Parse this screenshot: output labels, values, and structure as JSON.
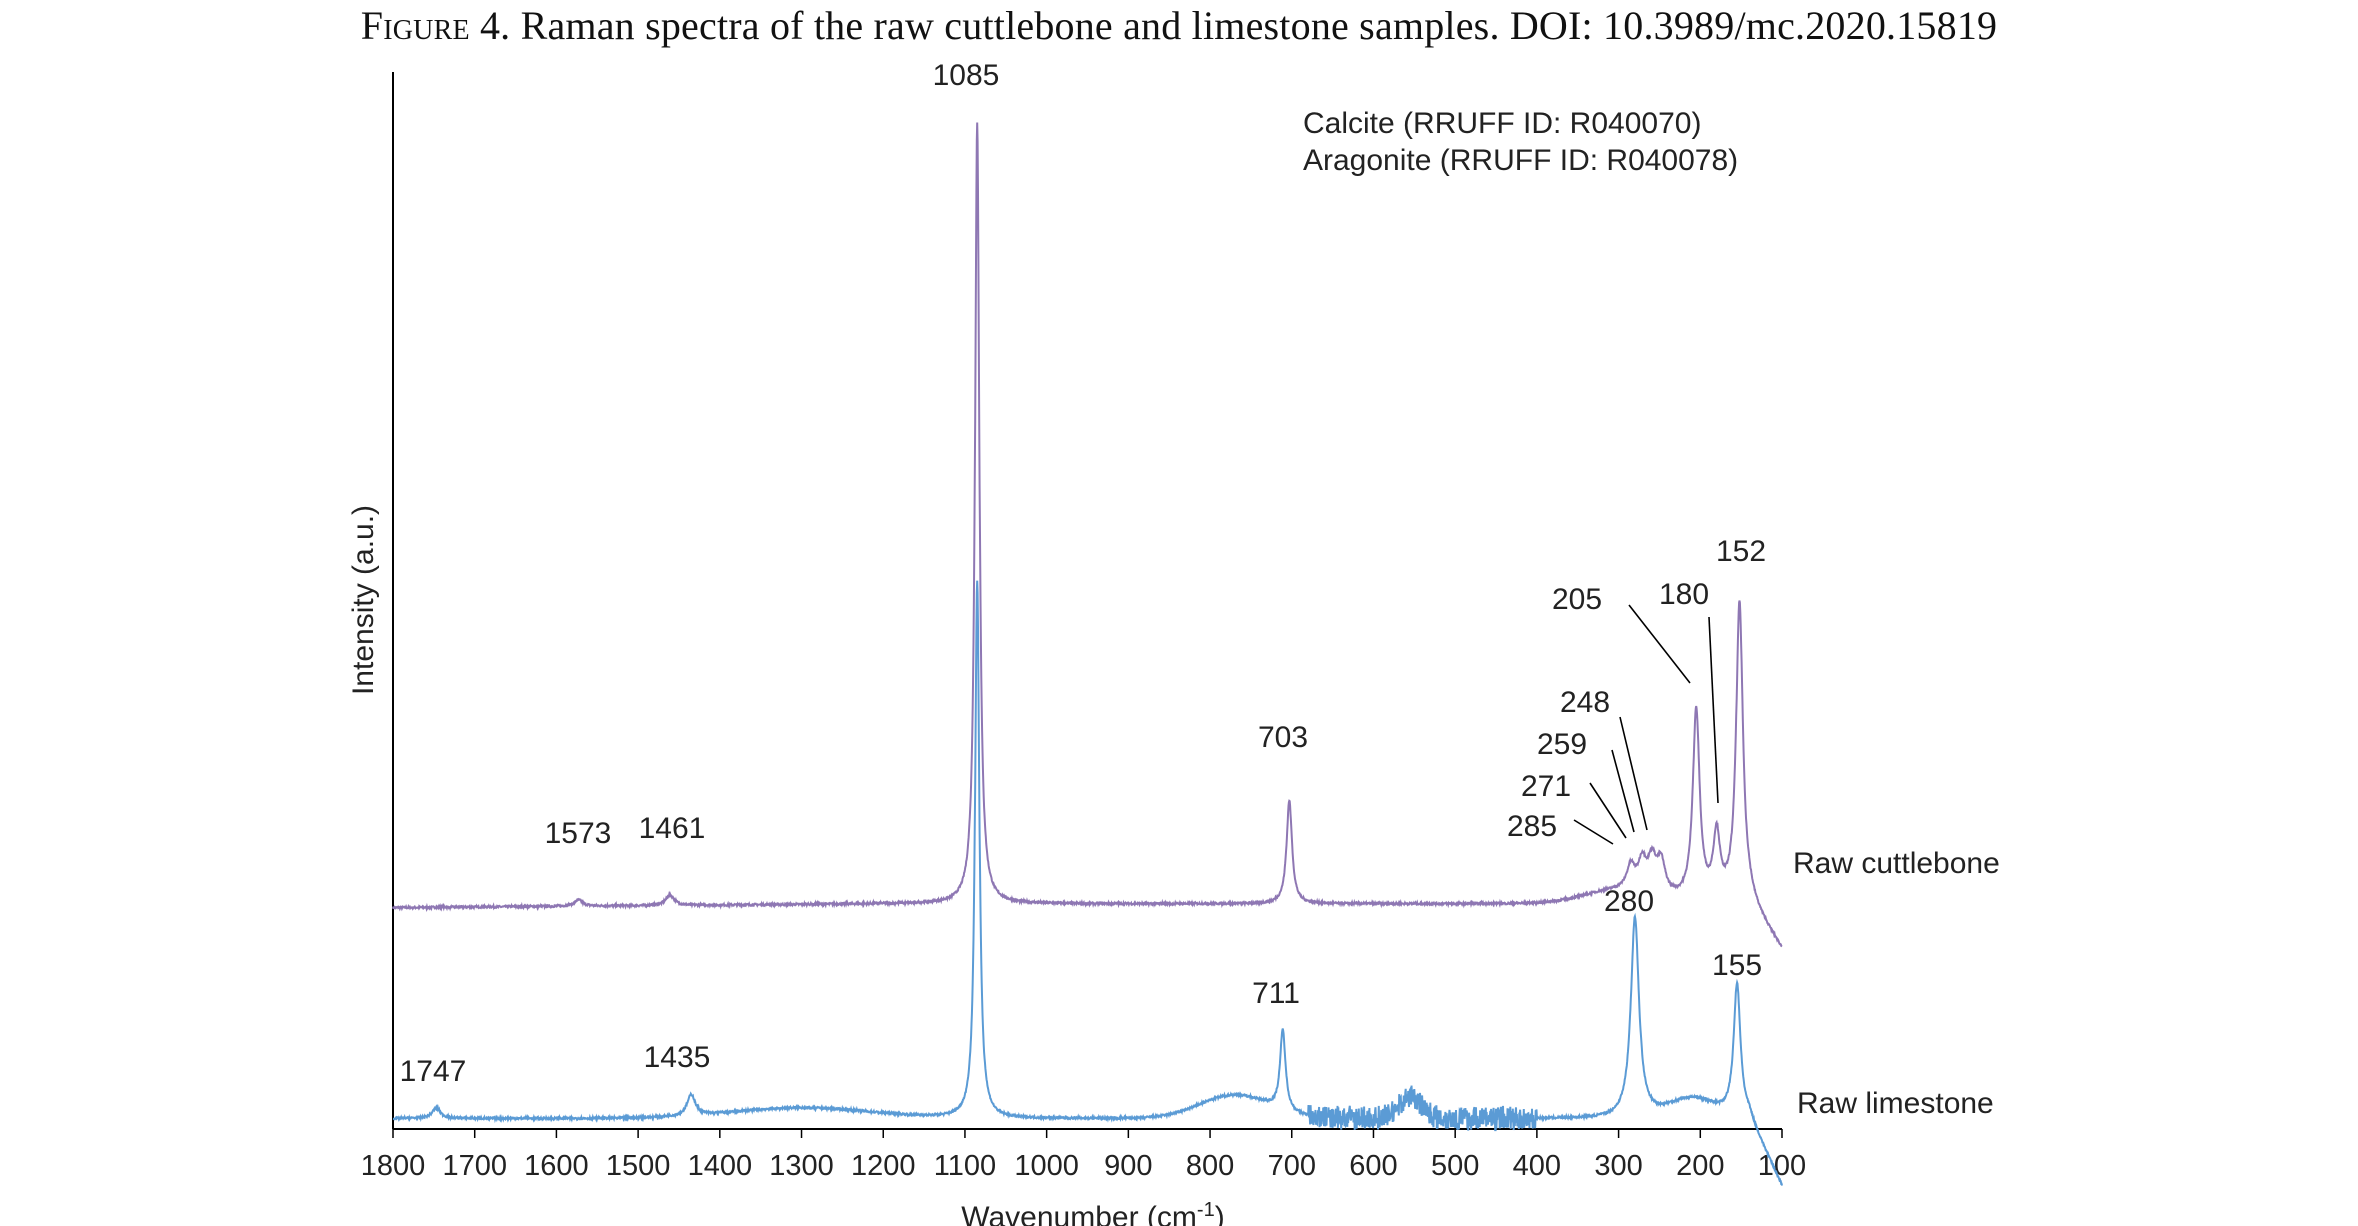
{
  "caption": {
    "figure_label": "Figure",
    "figure_number": "4.",
    "text": "Raman spectra of the raw cuttlebone and limestone samples. DOI: 10.3989/mc.2020.15819"
  },
  "chart_data": {
    "type": "line",
    "xlabel": "Wavenumber",
    "xlabel_unit": "(cm-1)",
    "ylabel": "Intensity (a.u.)",
    "xlim": [
      1800,
      100
    ],
    "x_reversed": true,
    "xticks": [
      1800,
      1700,
      1600,
      1500,
      1400,
      1300,
      1200,
      1100,
      1000,
      900,
      800,
      700,
      600,
      500,
      400,
      300,
      200,
      100
    ],
    "ylim": [
      0,
      1
    ],
    "grid": false,
    "references": [
      "Calcite (RRUFF ID: R040070)",
      "Aragonite (RRUFF ID: R040078)"
    ],
    "series": [
      {
        "name": "Raw cuttlebone",
        "color": "#8e77b3",
        "baseline": 0.213,
        "peaks": [
          {
            "x": 1573,
            "label": "1573",
            "height": 0.006
          },
          {
            "x": 1461,
            "label": "1461",
            "height": 0.01
          },
          {
            "x": 1085,
            "label": "1085",
            "height": 0.74
          },
          {
            "x": 703,
            "label": "703",
            "height": 0.098
          },
          {
            "x": 285,
            "label": "285",
            "height": 0.022
          },
          {
            "x": 271,
            "label": "271",
            "height": 0.027
          },
          {
            "x": 259,
            "label": "259",
            "height": 0.03
          },
          {
            "x": 248,
            "label": "248",
            "height": 0.03
          },
          {
            "x": 205,
            "label": "205",
            "height": 0.18
          },
          {
            "x": 180,
            "label": "180",
            "height": 0.06
          },
          {
            "x": 152,
            "label": "152",
            "height": 0.283
          }
        ]
      },
      {
        "name": "Raw limestone",
        "color": "#5b9bd5",
        "baseline": 0.01,
        "peaks": [
          {
            "x": 1747,
            "label": "1747",
            "height": 0.01
          },
          {
            "x": 1435,
            "label": "1435",
            "height": 0.02
          },
          {
            "x": 1085,
            "label": "1085",
            "height": 0.508
          },
          {
            "x": 711,
            "label": "711",
            "height": 0.076
          },
          {
            "x": 280,
            "label": "280",
            "height": 0.19
          },
          {
            "x": 155,
            "label": "155",
            "height": 0.125
          }
        ]
      }
    ]
  }
}
